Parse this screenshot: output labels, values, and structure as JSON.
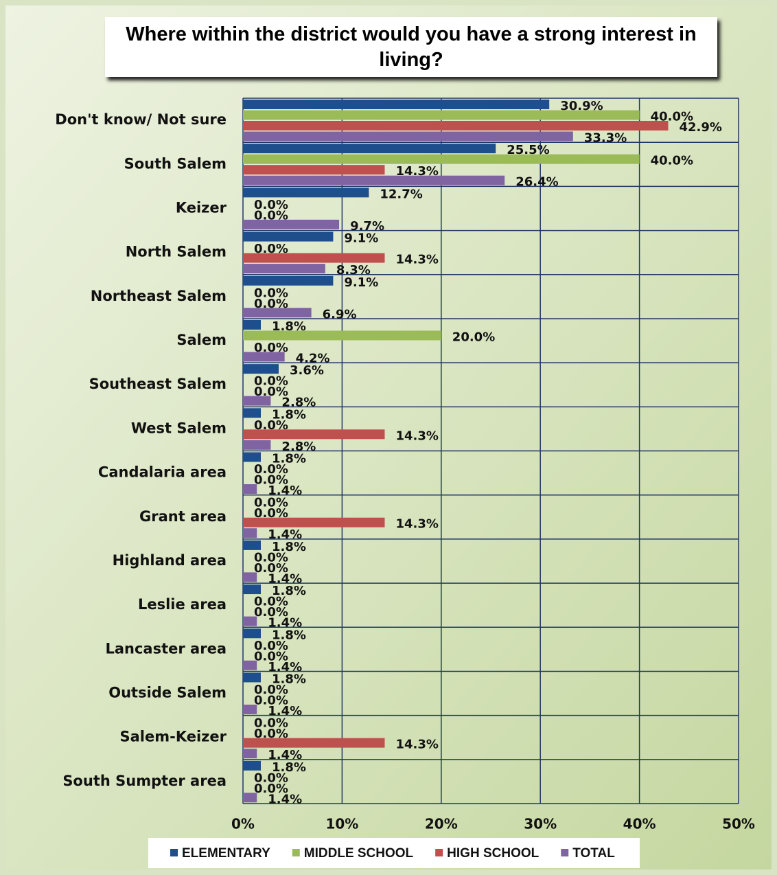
{
  "chart_data": {
    "type": "hbar",
    "title": "Where within the district would you have a strong interest in living?",
    "categories": [
      "Don't know/ Not sure",
      "South Salem",
      "Keizer",
      "North Salem",
      "Northeast Salem",
      "Salem",
      "Southeast Salem",
      "West Salem",
      "Candalaria area",
      "Grant area",
      "Highland area",
      "Leslie area",
      "Lancaster area",
      "Outside Salem",
      "Salem-Keizer",
      "South Sumpter area"
    ],
    "series": [
      {
        "name": "ELEMENTARY",
        "color": "#1f4e8c",
        "values": [
          30.9,
          25.5,
          12.7,
          9.1,
          9.1,
          1.8,
          3.6,
          1.8,
          1.8,
          0.0,
          1.8,
          1.8,
          1.8,
          1.8,
          0.0,
          1.8
        ],
        "value_labels": [
          "30.9%",
          "25.5%",
          "12.7%",
          "9.1%",
          "9.1%",
          "1.8%",
          "3.6%",
          "1.8%",
          "1.8%",
          "0.0%",
          "1.8%",
          "1.8%",
          "1.8%",
          "1.8%",
          "0.0%",
          "1.8%"
        ]
      },
      {
        "name": "MIDDLE SCHOOL",
        "color": "#9bbb59",
        "values": [
          40.0,
          40.0,
          0.0,
          0.0,
          0.0,
          20.0,
          0.0,
          0.0,
          0.0,
          0.0,
          0.0,
          0.0,
          0.0,
          0.0,
          0.0,
          0.0
        ],
        "value_labels": [
          "40.0%",
          "40.0%",
          "0.0%",
          "0.0%",
          "0.0%",
          "20.0%",
          "0.0%",
          "0.0%",
          "0.0%",
          "0.0%",
          "0.0%",
          "0.0%",
          "0.0%",
          "0.0%",
          "0.0%",
          "0.0%"
        ]
      },
      {
        "name": "HIGH SCHOOL",
        "color": "#c0504d",
        "values": [
          42.9,
          14.3,
          0.0,
          14.3,
          0.0,
          0.0,
          0.0,
          14.3,
          0.0,
          14.3,
          0.0,
          0.0,
          0.0,
          0.0,
          14.3,
          0.0
        ],
        "value_labels": [
          "42.9%",
          "14.3%",
          "0.0%",
          "14.3%",
          "0.0%",
          "0.0%",
          "0.0%",
          "14.3%",
          "0.0%",
          "14.3%",
          "0.0%",
          "0.0%",
          "0.0%",
          "0.0%",
          "14.3%",
          "0.0%"
        ]
      },
      {
        "name": "TOTAL",
        "color": "#8064a2",
        "values": [
          33.3,
          26.4,
          9.7,
          8.3,
          6.9,
          4.2,
          2.8,
          2.8,
          1.4,
          1.4,
          1.4,
          1.4,
          1.4,
          1.4,
          1.4,
          1.4
        ],
        "value_labels": [
          "33.3%",
          "26.4%",
          "9.7%",
          "8.3%",
          "6.9%",
          "4.2%",
          "2.8%",
          "2.8%",
          "1.4%",
          "1.4%",
          "1.4%",
          "1.4%",
          "1.4%",
          "1.4%",
          "1.4%",
          "1.4%"
        ]
      }
    ],
    "xlim": [
      0,
      50
    ],
    "xticks": [
      {
        "value": 0,
        "label": "0%"
      },
      {
        "value": 10,
        "label": "10%"
      },
      {
        "value": 20,
        "label": "20%"
      },
      {
        "value": 30,
        "label": "30%"
      },
      {
        "value": 40,
        "label": "40%"
      },
      {
        "value": 50,
        "label": "50%"
      }
    ],
    "grid": true,
    "legend": "bottom"
  }
}
